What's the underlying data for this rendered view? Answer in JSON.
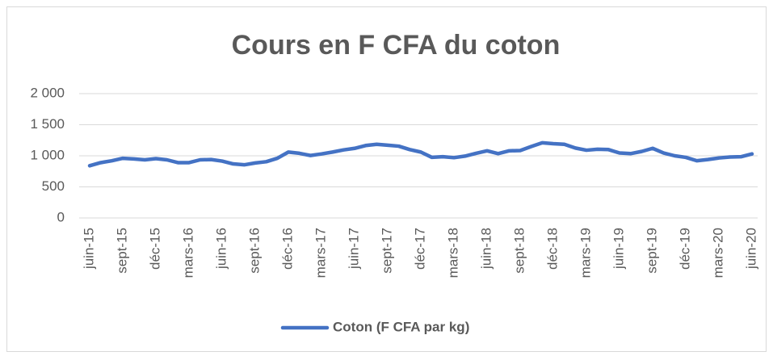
{
  "chart_data": {
    "type": "line",
    "title": "Cours en F CFA du coton",
    "categories": [
      "juin-15",
      null,
      null,
      "sept-15",
      null,
      null,
      "déc-15",
      null,
      null,
      "mars-16",
      null,
      null,
      "juin-16",
      null,
      null,
      "sept-16",
      null,
      null,
      "déc-16",
      null,
      null,
      "mars-17",
      null,
      null,
      "juin-17",
      null,
      null,
      "sept-17",
      null,
      null,
      "déc-17",
      null,
      null,
      "mars-18",
      null,
      null,
      "juin-18",
      null,
      null,
      "sept-18",
      null,
      null,
      "déc-18",
      null,
      null,
      "mars-19",
      null,
      null,
      "juin-19",
      null,
      null,
      "sept-19",
      null,
      null,
      "déc-19",
      null,
      null,
      "mars-20",
      null,
      null,
      "juin-20"
    ],
    "series": [
      {
        "name": "Coton (F CFA par kg)",
        "color": "#4472c4",
        "values": [
          840,
          890,
          920,
          960,
          950,
          935,
          955,
          935,
          890,
          890,
          935,
          940,
          915,
          870,
          855,
          885,
          905,
          960,
          1060,
          1040,
          1005,
          1030,
          1060,
          1095,
          1120,
          1165,
          1185,
          1170,
          1155,
          1100,
          1060,
          975,
          985,
          970,
          995,
          1040,
          1080,
          1035,
          1080,
          1085,
          1150,
          1210,
          1195,
          1185,
          1125,
          1090,
          1105,
          1100,
          1045,
          1035,
          1070,
          1120,
          1045,
          1000,
          975,
          920,
          940,
          965,
          980,
          985,
          1030
        ]
      }
    ],
    "ylim": [
      0,
      2000
    ],
    "yticks": [
      0,
      500,
      {
        "value": 1000,
        "label": "1 000"
      },
      {
        "value": 1500,
        "label": "1 500"
      },
      {
        "value": 2000,
        "label": "2 000"
      }
    ],
    "grid": true,
    "legend": "bottom"
  }
}
